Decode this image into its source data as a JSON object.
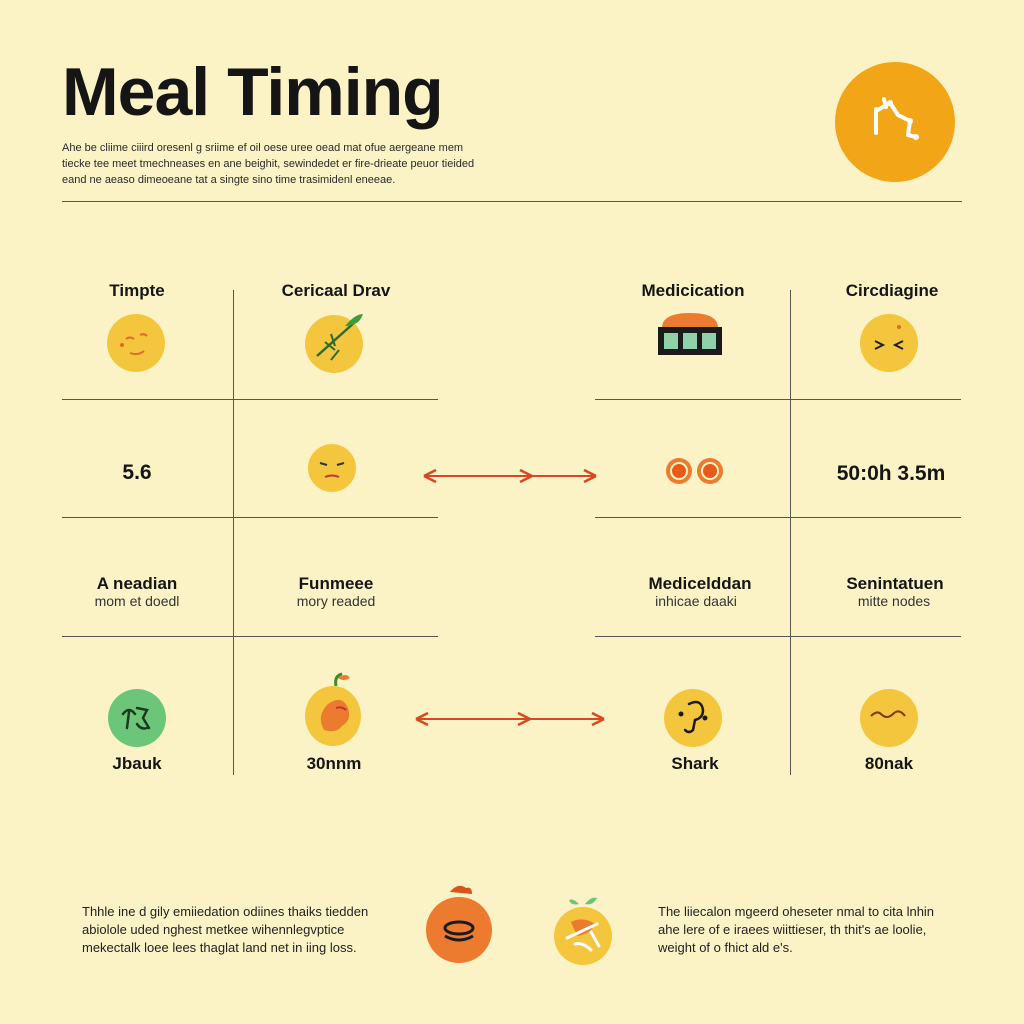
{
  "header": {
    "title": "Meal Timing",
    "intro": "Ahe be cliime ciiird oresenl g sriime ef oil oese uree oead mat ofue aergeane mem tiecke tee meet tmechneases en ane beighit, sewindedet er fire-drieate peuor tieided eand ne aeaso dimeoeane tat a singte sino time trasimidenl eneeae."
  },
  "grid": {
    "left_headers": [
      "Timpte",
      "Cericaal Drav"
    ],
    "right_headers": [
      "Medicication",
      "Circdiagine"
    ],
    "row2_left_value": "5.6",
    "row2_right_value": "50:0h 3.5m",
    "row3": {
      "c1": {
        "title": "A neadian",
        "sub": "mom et doedl"
      },
      "c2": {
        "title": "Funmeee",
        "sub": "mory readed"
      },
      "c3": {
        "title": "Medicelddan",
        "sub": "inhicae daaki"
      },
      "c4": {
        "title": "Senintatuen",
        "sub": "mitte nodes"
      }
    },
    "row4_labels": [
      "Jbauk",
      "30nnm",
      "Shark",
      "80nak"
    ]
  },
  "footer": {
    "left_note": "Thhle ine d gily emiiedation odiines thaiks tiedden abiolole uded nghest metkee wihennlegvptice mekectalk loee lees thaglat land net in iing loss.",
    "right_note": "The liiecalon mgeerd oheseter nmal to cita lnhin ahe lere of e iraees wiittieser, th thit's ae loolie, weight of o fhict ald e's."
  },
  "icons": {
    "header_badge": "circadian-figure-icon",
    "row1": [
      "face-icon",
      "leaf-icon",
      "pill-box-icon",
      "squint-face-icon"
    ],
    "row2": [
      "sleepy-face-icon",
      "double-ring-icon"
    ],
    "row4": [
      "symbol-icon",
      "fruit-icon",
      "face-icon",
      "face-icon"
    ],
    "footer": [
      "bowl-icon",
      "fruit-icon"
    ]
  },
  "colors": {
    "background": "#fbf3c5",
    "accent": "#f2a516",
    "arrow": "#d64a1f",
    "face": "#f4c63d",
    "green": "#6cc67a",
    "orange": "#ec7a2f"
  }
}
